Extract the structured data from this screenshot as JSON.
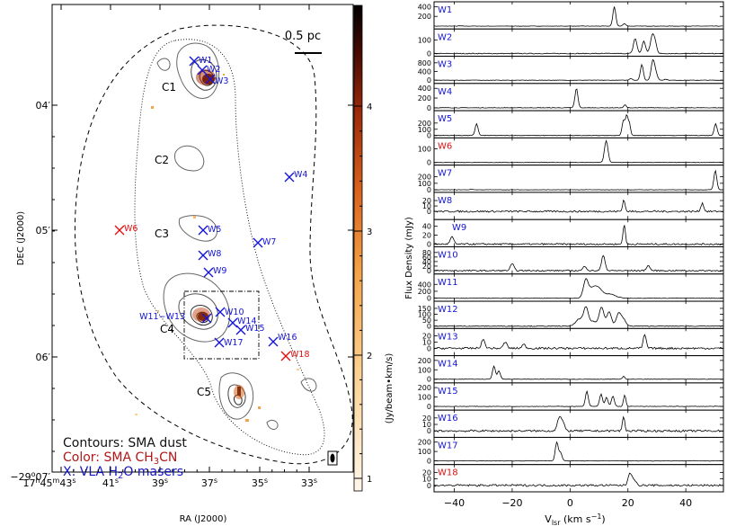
{
  "map": {
    "scalebar_label": "0.5 pc",
    "dec_axis_label": "DEC (J2000)",
    "ra_axis_label": "RA (J2000)",
    "colorbar_label": "(Jy/beam•km/s)",
    "colorbar_ticks": [
      "1",
      "2",
      "3",
      "4"
    ],
    "ra_ticks": [
      {
        "h": "17",
        "hs": "h",
        "m": "45",
        "ms": "m",
        "s": "43",
        "ss": "s"
      },
      {
        "s": "41",
        "ss": "s"
      },
      {
        "s": "39",
        "ss": "s"
      },
      {
        "s": "37",
        "ss": "s"
      },
      {
        "s": "35",
        "ss": "s"
      },
      {
        "s": "33",
        "ss": "s"
      }
    ],
    "dec_ticks": [
      {
        "d": "−29",
        "ds": "o",
        "m": "07",
        "ms": "′"
      },
      {
        "m": "06",
        "ms": "′"
      },
      {
        "m": "05",
        "ms": "′"
      },
      {
        "m": "04",
        "ms": "′"
      }
    ],
    "clumps": [
      "C1",
      "C2",
      "C3",
      "C4",
      "C5"
    ],
    "masers": [
      {
        "label": "W1",
        "color": "#1414d8"
      },
      {
        "label": "W2",
        "color": "#1414d8"
      },
      {
        "label": "W3",
        "color": "#1414d8"
      },
      {
        "label": "W4",
        "color": "#1414d8"
      },
      {
        "label": "W5",
        "color": "#1414d8"
      },
      {
        "label": "W6",
        "color": "#e01010"
      },
      {
        "label": "W7",
        "color": "#1414d8"
      },
      {
        "label": "W8",
        "color": "#1414d8"
      },
      {
        "label": "W9",
        "color": "#1414d8"
      },
      {
        "label": "W10",
        "color": "#1414d8"
      },
      {
        "label": "W11−W13",
        "color": "#1414d8"
      },
      {
        "label": "W14",
        "color": "#1414d8"
      },
      {
        "label": "W15",
        "color": "#1414d8"
      },
      {
        "label": "W16",
        "color": "#1414d8"
      },
      {
        "label": "W17",
        "color": "#1414d8"
      },
      {
        "label": "W18",
        "color": "#e01010"
      }
    ],
    "legend": {
      "line1": "Contours: SMA dust",
      "line2_pre": "Color: SMA CH",
      "line2_sub": "3",
      "line2_post": "CN",
      "line3_pre": "X: VLA H",
      "line3_sub": "2",
      "line3_post": "O masers",
      "color_black": "#111111",
      "color_red": "#b01818",
      "color_blue": "#1414c0"
    }
  },
  "chart_data": {
    "type": "line",
    "ylabel": "Flux Density  (mJy)",
    "xlabel_pre": "V",
    "xlabel_sub": "lsr",
    "xlabel_post": " (km s",
    "xlabel_sup": "−1",
    "xlabel_end": ")",
    "xlim": [
      -47,
      53
    ],
    "xticks": [
      -40,
      -20,
      0,
      20,
      40
    ],
    "panels": [
      {
        "name": "W1",
        "color": "#1414d8",
        "ylim": [
          -60,
          500
        ],
        "yticks": [
          200,
          400
        ],
        "noise": 4,
        "peaks": [
          [
            15.3,
            400,
            0.5
          ],
          [
            18.8,
            50,
            0.5
          ],
          [
            -38,
            6,
            0.5
          ]
        ]
      },
      {
        "name": "W2",
        "color": "#1414d8",
        "ylim": [
          -20,
          180
        ],
        "yticks": [
          0,
          100
        ],
        "noise": 3,
        "peaks": [
          [
            22.5,
            110,
            0.6
          ],
          [
            25.5,
            90,
            0.6
          ],
          [
            28.5,
            140,
            0.7
          ],
          [
            29.6,
            50,
            0.5
          ]
        ]
      },
      {
        "name": "W3",
        "color": "#1414d8",
        "ylim": [
          -150,
          1100
        ],
        "yticks": [
          0,
          400,
          800
        ],
        "noise": 10,
        "peaks": [
          [
            21,
            80,
            0.5
          ],
          [
            24.8,
            720,
            0.5
          ],
          [
            28.6,
            860,
            0.6
          ],
          [
            29.6,
            300,
            0.6
          ],
          [
            33,
            40,
            0.6
          ]
        ]
      },
      {
        "name": "W4",
        "color": "#1414d8",
        "ylim": [
          -60,
          500
        ],
        "yticks": [
          0,
          200,
          400
        ],
        "noise": 5,
        "peaks": [
          [
            2.2,
            400,
            0.5
          ],
          [
            19,
            60,
            0.4
          ]
        ]
      },
      {
        "name": "W5",
        "color": "#1414d8",
        "ylim": [
          -40,
          400
        ],
        "yticks": [
          0,
          100,
          200
        ],
        "noise": 4,
        "peaks": [
          [
            -32.3,
            190,
            0.5
          ],
          [
            18.5,
            250,
            0.5
          ],
          [
            19.6,
            300,
            0.4
          ],
          [
            20.5,
            200,
            0.4
          ],
          [
            50.3,
            190,
            0.5
          ]
        ]
      },
      {
        "name": "W6",
        "color": "#e01010",
        "ylim": [
          -20,
          180
        ],
        "yticks": [
          0,
          100
        ],
        "noise": 2,
        "peaks": [
          [
            12.5,
            160,
            0.6
          ]
        ]
      },
      {
        "name": "W7",
        "color": "#1414d8",
        "ylim": [
          -40,
          380
        ],
        "yticks": [
          0,
          100,
          200
        ],
        "noise": 3,
        "peaks": [
          [
            -34,
            10,
            0.5
          ],
          [
            50.2,
            300,
            0.5
          ]
        ]
      },
      {
        "name": "W8",
        "color": "#1414d8",
        "ylim": [
          -15,
          35
        ],
        "yticks": [
          0,
          10,
          20
        ],
        "noise": 1.6,
        "peaks": [
          [
            18.6,
            22,
            0.4
          ],
          [
            45.7,
            15,
            0.5
          ]
        ]
      },
      {
        "name": "W9",
        "color": "#1414d8",
        "ylim": [
          -6,
          55
        ],
        "yticks": [
          0,
          20,
          40
        ],
        "noise": 1.8,
        "peaks": [
          [
            -40.8,
            16,
            0.6
          ],
          [
            18.7,
            44,
            0.4
          ]
        ]
      },
      {
        "name": "W10",
        "color": "#1414d8",
        "ylim": [
          -15,
          105
        ],
        "yticks": [
          0,
          20,
          40,
          60,
          80
        ],
        "noise": 3,
        "peaks": [
          [
            -20,
            30,
            0.6
          ],
          [
            5.1,
            20,
            0.6
          ],
          [
            11.5,
            68,
            0.6
          ],
          [
            27,
            22,
            0.6
          ]
        ]
      },
      {
        "name": "W11",
        "color": "#1414d8",
        "ylim": [
          -90,
          700
        ],
        "yticks": [
          0,
          200,
          400
        ],
        "noise": 8,
        "peaks": [
          [
            5.4,
            460,
            0.8
          ],
          [
            7.5,
            260,
            1.5
          ],
          [
            9.8,
            230,
            1.3
          ],
          [
            13.6,
            120,
            2
          ]
        ]
      },
      {
        "name": "W12",
        "color": "#1414d8",
        "ylim": [
          -20,
          210
        ],
        "yticks": [
          0,
          50,
          100,
          150
        ],
        "noise": 3,
        "peaks": [
          [
            3.2,
            60,
            1.2
          ],
          [
            5.5,
            150,
            0.8
          ],
          [
            8,
            40,
            1.2
          ],
          [
            10.9,
            160,
            0.8
          ],
          [
            13.5,
            120,
            0.8
          ],
          [
            16.8,
            110,
            0.8
          ],
          [
            18.5,
            55,
            0.8
          ]
        ]
      },
      {
        "name": "W13",
        "color": "#1414d8",
        "ylim": [
          -12,
          32
        ],
        "yticks": [
          0,
          10,
          20
        ],
        "noise": 1.6,
        "peaks": [
          [
            -30,
            14,
            0.6
          ],
          [
            -22.4,
            10,
            0.6
          ],
          [
            -16,
            6,
            0.6
          ],
          [
            25.8,
            22,
            0.5
          ]
        ]
      },
      {
        "name": "W14",
        "color": "#1414d8",
        "ylim": [
          -40,
          250
        ],
        "yticks": [
          0,
          100,
          200
        ],
        "noise": 2.5,
        "peaks": [
          [
            -26.3,
            140,
            0.5
          ],
          [
            -24.6,
            90,
            0.5
          ],
          [
            18.5,
            30,
            0.4
          ]
        ]
      },
      {
        "name": "W15",
        "color": "#1414d8",
        "ylim": [
          -40,
          250
        ],
        "yticks": [
          0,
          100,
          200
        ],
        "noise": 2.5,
        "peaks": [
          [
            5.8,
            160,
            0.5
          ],
          [
            10.7,
            130,
            0.5
          ],
          [
            12.6,
            95,
            0.5
          ],
          [
            14.8,
            110,
            0.5
          ],
          [
            18.9,
            120,
            0.4
          ]
        ]
      },
      {
        "name": "W16",
        "color": "#1414d8",
        "ylim": [
          -10,
          32
        ],
        "yticks": [
          0,
          10,
          20
        ],
        "noise": 1.5,
        "peaks": [
          [
            -3.8,
            18,
            0.7
          ],
          [
            -2.6,
            12,
            0.7
          ],
          [
            18.5,
            22,
            0.4
          ]
        ]
      },
      {
        "name": "W17",
        "color": "#1414d8",
        "ylim": [
          -40,
          250
        ],
        "yticks": [
          0,
          100,
          200
        ],
        "noise": 2.5,
        "peaks": [
          [
            -4.6,
            200,
            0.5
          ],
          [
            -3.3,
            90,
            0.5
          ]
        ]
      },
      {
        "name": "W18",
        "color": "#e01010",
        "ylim": [
          -10,
          32
        ],
        "yticks": [
          0,
          10,
          20
        ],
        "noise": 1.5,
        "peaks": [
          [
            20.6,
            16,
            0.6
          ],
          [
            21.8,
            10,
            0.8
          ]
        ]
      }
    ]
  }
}
